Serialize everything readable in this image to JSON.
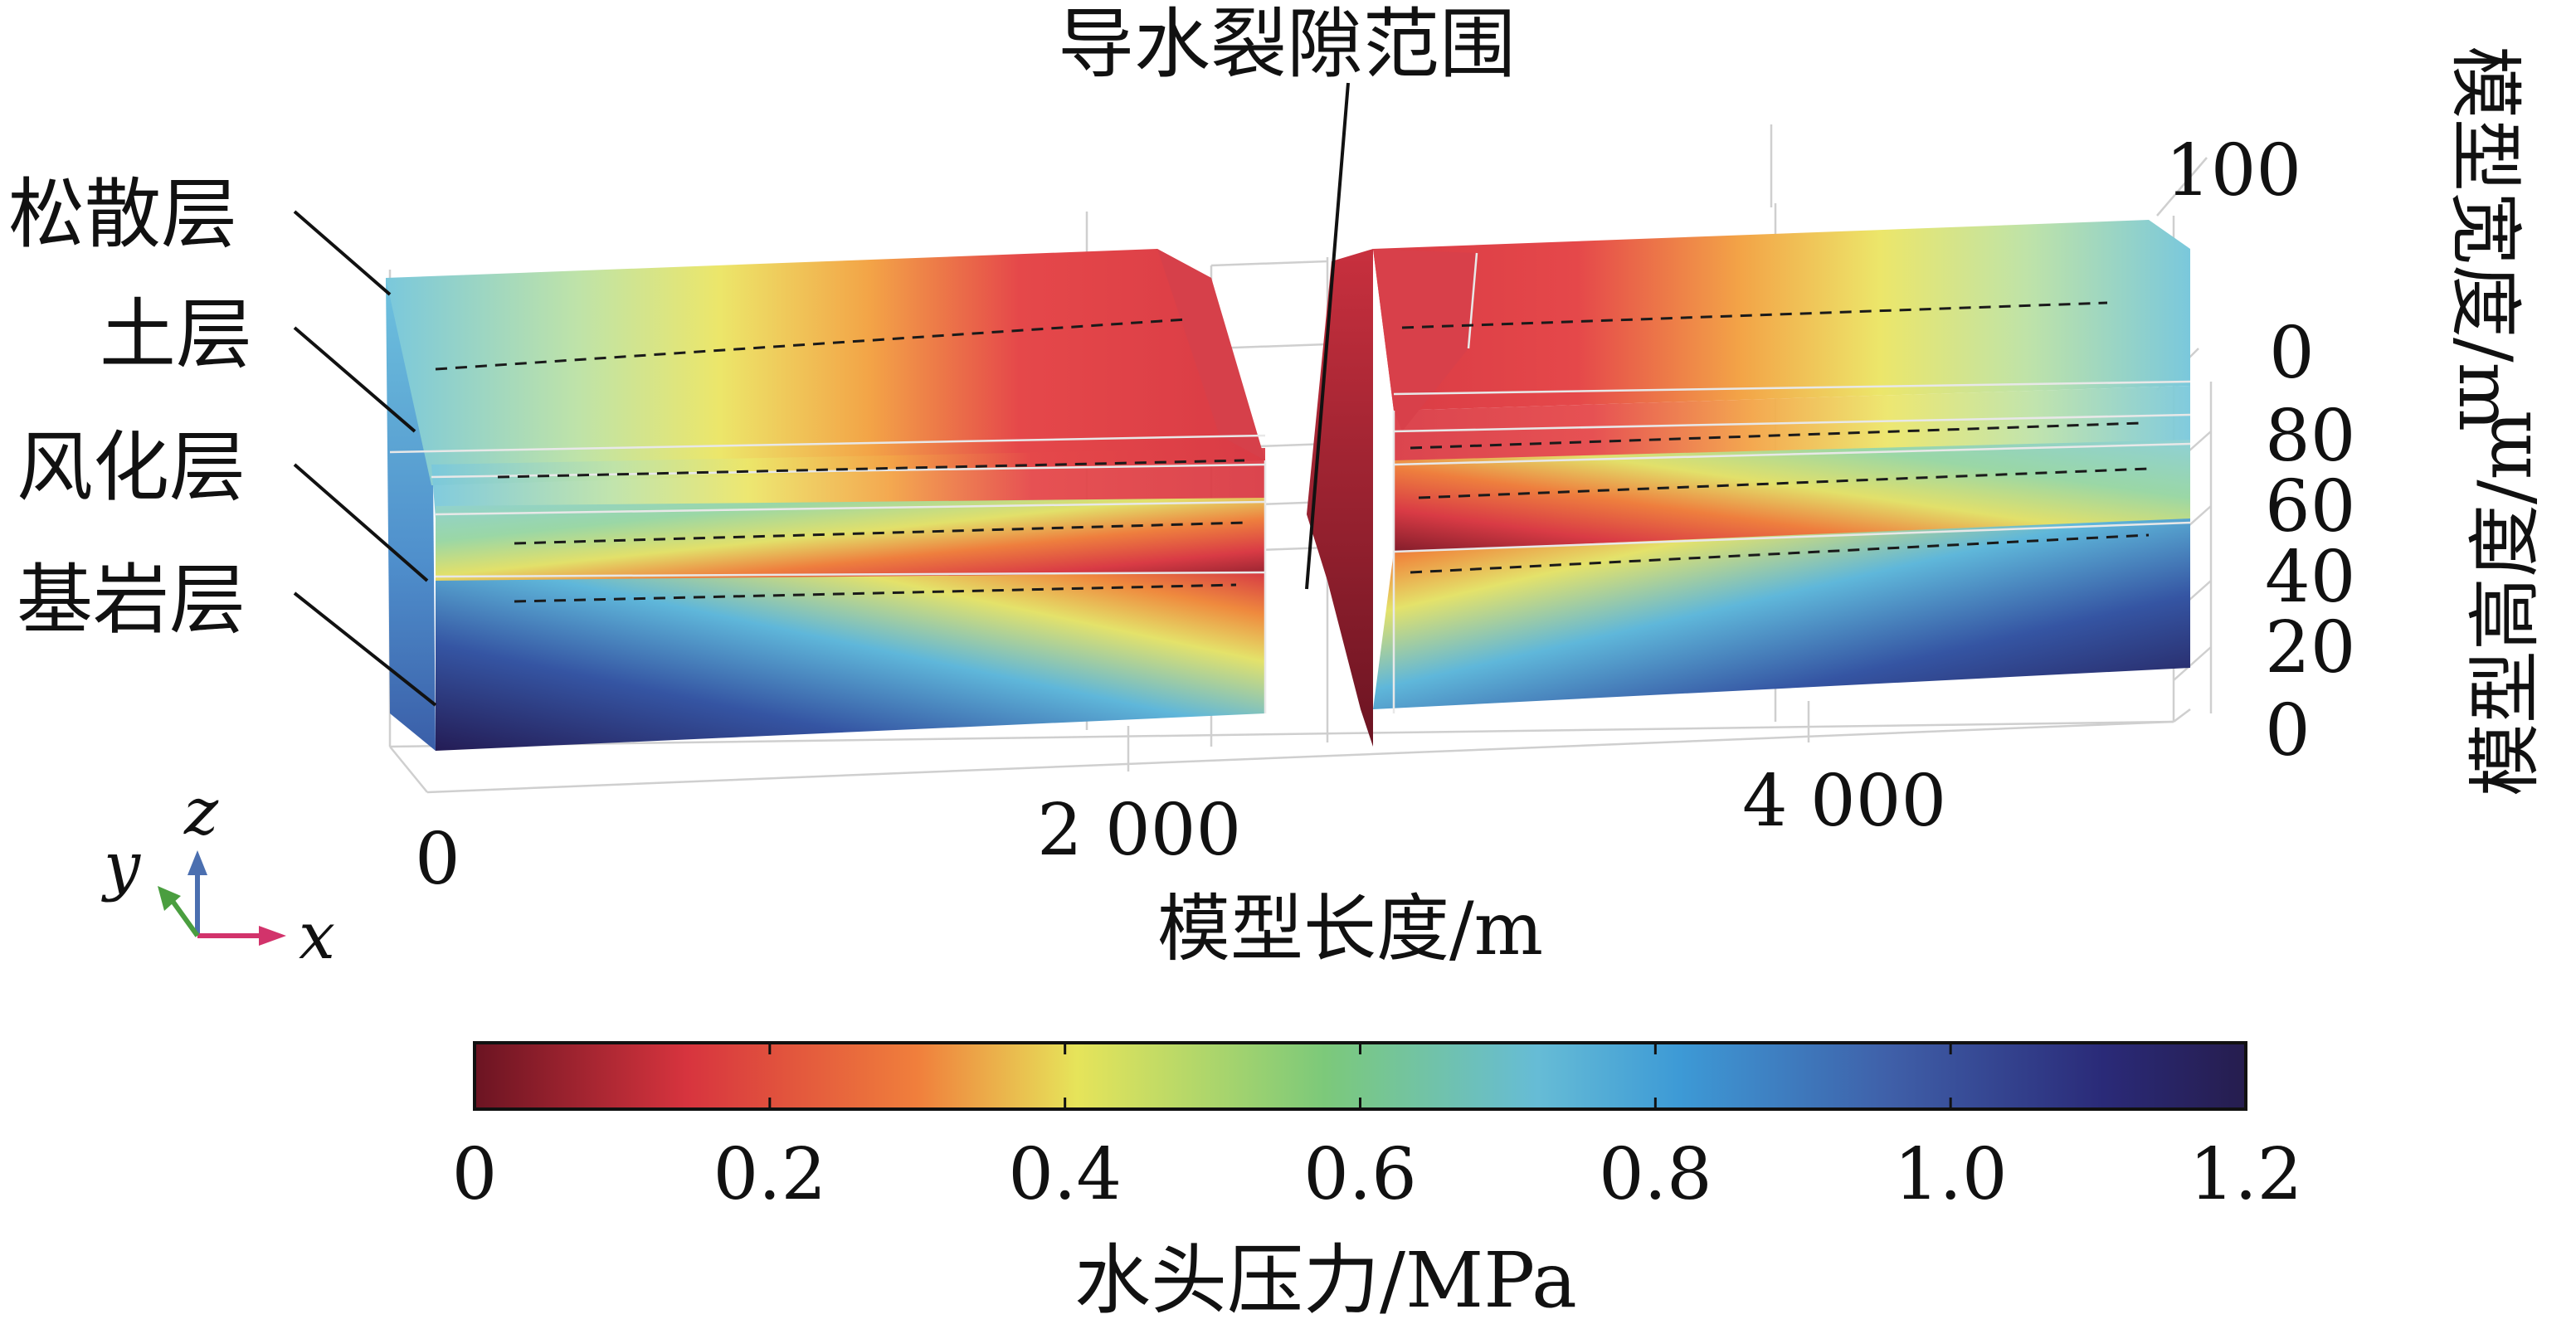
{
  "chart_data": {
    "type": "3d-field",
    "title": "",
    "annotation_fracture": "导水裂隙范围",
    "layers": [
      "松散层",
      "土层",
      "风化层",
      "基岩层"
    ],
    "x_axis": {
      "label": "模型长度/m",
      "ticks": [
        "0",
        "2 000",
        "4 000"
      ],
      "range": [
        0,
        5000
      ]
    },
    "y_axis": {
      "label": "模型宽度/m",
      "ticks": [
        "100",
        "0"
      ],
      "range": [
        0,
        100
      ]
    },
    "z_axis": {
      "label": "模型高度/m",
      "ticks": [
        "80",
        "60",
        "40",
        "20",
        "0"
      ],
      "range": [
        0,
        90
      ]
    },
    "orientation": {
      "x": "x",
      "y": "y",
      "z": "z"
    },
    "colorbar": {
      "label": "水头压力/MPa",
      "ticks": [
        "0",
        "0.2",
        "0.4",
        "0.6",
        "0.8",
        "1.0",
        "1.2"
      ],
      "range": [
        0,
        1.2
      ],
      "colormap": [
        "#6b1422",
        "#d7343e",
        "#f07f3c",
        "#e6e45a",
        "#7cc97a",
        "#66bcd6",
        "#3d9ad6",
        "#3f5fa8",
        "#2a2a78",
        "#261d4e"
      ]
    }
  }
}
